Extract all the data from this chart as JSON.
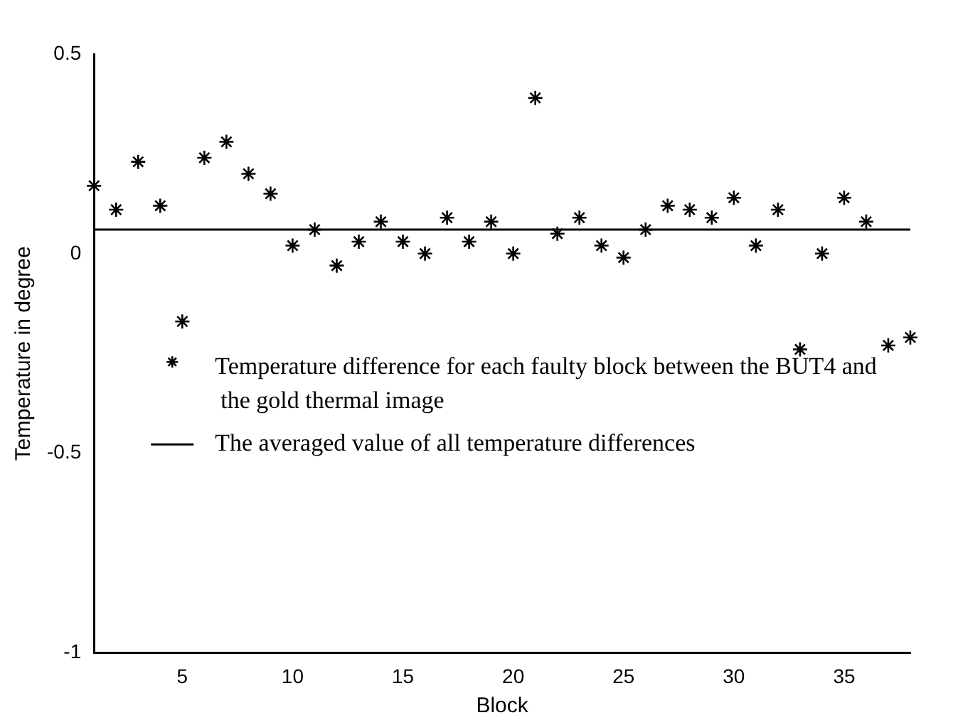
{
  "chart_data": {
    "type": "scatter",
    "xlabel": "Block",
    "ylabel": "Temperature in degree",
    "x": [
      1,
      2,
      3,
      4,
      5,
      6,
      7,
      8,
      9,
      10,
      11,
      12,
      13,
      14,
      15,
      16,
      17,
      18,
      19,
      20,
      21,
      22,
      23,
      24,
      25,
      26,
      27,
      28,
      29,
      30,
      31,
      32,
      33,
      34,
      35,
      36,
      37,
      38
    ],
    "xlim": [
      1,
      38
    ],
    "xticks": [
      5,
      10,
      15,
      20,
      25,
      30,
      35
    ],
    "ylim": [
      -1,
      0.5
    ],
    "yticks": [
      -1,
      -0.5,
      0,
      0.5
    ],
    "grid": false,
    "legend": "center",
    "line_style": "solid",
    "series": [
      {
        "name": "Temperature difference for each faulty block between the BUT4 and the gold thermal image",
        "color": "#000000",
        "marker": "cross",
        "values": [
          0.17,
          0.11,
          0.23,
          0.12,
          -0.17,
          0.24,
          0.28,
          0.2,
          0.15,
          0.02,
          0.06,
          -0.03,
          0.03,
          0.08,
          0.03,
          0.0,
          0.09,
          0.03,
          0.08,
          0.0,
          0.39,
          0.05,
          0.09,
          0.02,
          -0.01,
          0.06,
          0.12,
          0.11,
          0.09,
          0.14,
          0.02,
          0.11,
          -0.24,
          0.0,
          0.14,
          0.08,
          -0.23,
          -0.21
        ]
      },
      {
        "name": "The averaged value of all temperature differences",
        "type": "line",
        "color": "#000000",
        "marker": "none",
        "x": [
          1,
          38
        ],
        "values": [
          0.06,
          0.06
        ]
      }
    ]
  }
}
